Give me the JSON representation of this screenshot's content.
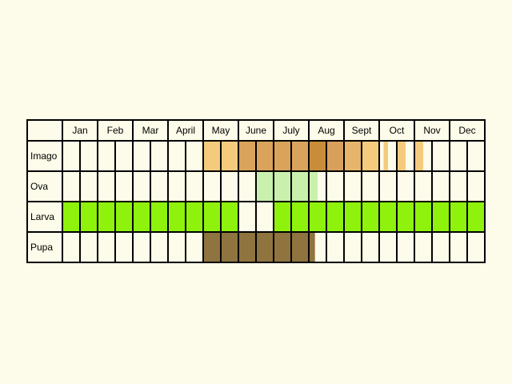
{
  "months": [
    "Jan",
    "Feb",
    "Mar",
    "April",
    "May",
    "June",
    "July",
    "Aug",
    "Sept",
    "Oct",
    "Nov",
    "Dec"
  ],
  "rows": [
    {
      "label": "Imago",
      "fills": [
        {
          "from": 8,
          "to": 10,
          "color": "#f4ca7c"
        },
        {
          "from": 10,
          "to": 14,
          "color": "#daa35c"
        },
        {
          "from": 14,
          "to": 15,
          "color": "#c98d3a"
        },
        {
          "from": 15,
          "to": 16,
          "color": "#d8a05a"
        },
        {
          "from": 16,
          "to": 17,
          "color": "#e6b46a"
        },
        {
          "from": 17,
          "to": 18,
          "color": "#f4ca7c"
        },
        {
          "from": 18.25,
          "to": 18.5,
          "color": "#f4ca7c"
        },
        {
          "from": 19,
          "to": 19.5,
          "color": "#f4ca7c"
        },
        {
          "from": 20,
          "to": 20.5,
          "color": "#f4ca7c"
        }
      ]
    },
    {
      "label": "Ova",
      "fills": [
        {
          "from": 11,
          "to": 14.5,
          "color": "#c9f0ad"
        }
      ]
    },
    {
      "label": "Larva",
      "fills": [
        {
          "from": 0,
          "to": 10,
          "color": "#8ef20d"
        },
        {
          "from": 12,
          "to": 24,
          "color": "#8ef20d"
        }
      ]
    },
    {
      "label": "Pupa",
      "fills": [
        {
          "from": 8,
          "to": 14.35,
          "color": "#8f743f"
        }
      ]
    }
  ],
  "colors": {
    "background": "#fdfbe9",
    "grid": "#000000",
    "cell": "#fdfbe9"
  }
}
